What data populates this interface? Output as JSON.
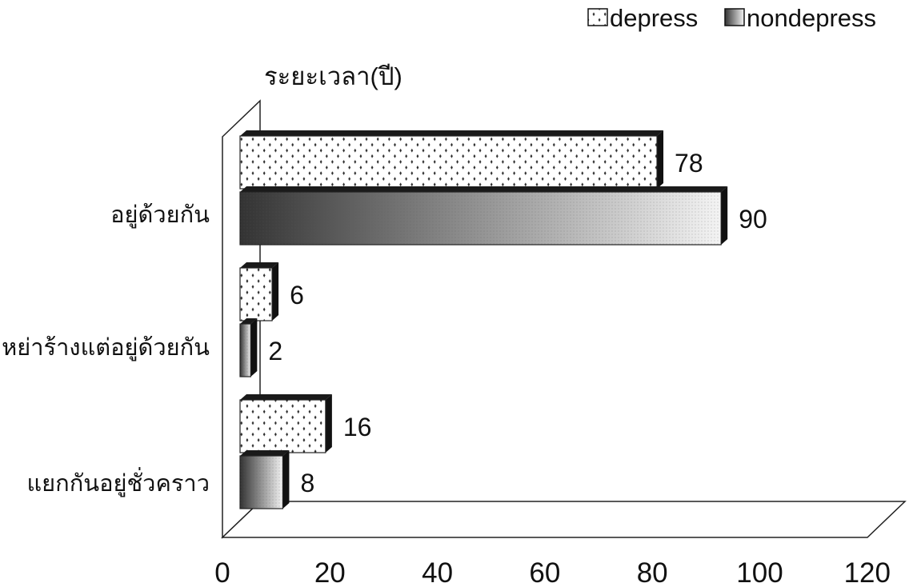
{
  "chart_data": {
    "type": "bar",
    "orientation": "horizontal",
    "three_d": true,
    "title": "",
    "ylabel": "ระยะเวลา(ปี)",
    "xlabel": "",
    "xlim": [
      0,
      120
    ],
    "x_ticks": [
      "0",
      "20",
      "40",
      "60",
      "80",
      "100",
      "120"
    ],
    "categories": [
      "อยู่ด้วยกัน",
      "หย่าร้างแต่อยู่ด้วยกัน",
      "แยกกันอยู่ชั่วคราว"
    ],
    "series": [
      {
        "name": "depress",
        "values": [
          78,
          6,
          16
        ],
        "value_labels": [
          "78",
          "6",
          "16"
        ],
        "pattern": "dots"
      },
      {
        "name": "nondepress",
        "values": [
          90,
          2,
          8
        ],
        "value_labels": [
          "90",
          "2",
          "8"
        ],
        "pattern": "gradient"
      }
    ],
    "legend_position": "top-right",
    "grid": false
  }
}
